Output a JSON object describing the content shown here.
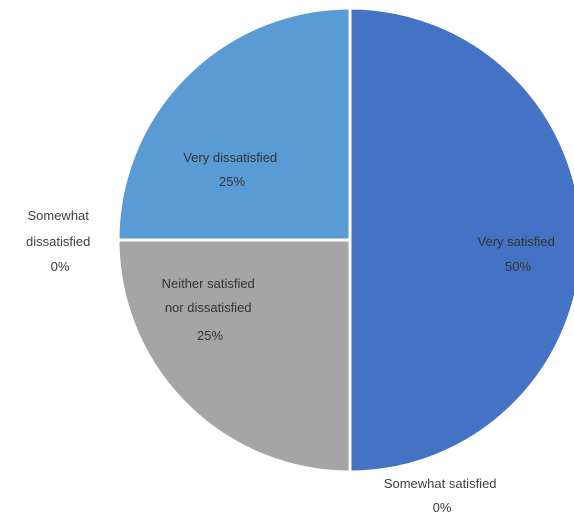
{
  "chart_data": {
    "type": "pie",
    "title": "",
    "start_angle_deg": 0,
    "direction": "clockwise",
    "legend": "none",
    "slices": [
      {
        "name": "Very satisfied",
        "value": 50,
        "label": "50%",
        "color": "#4472C4"
      },
      {
        "name": "Somewhat satisfied",
        "value": 0,
        "label": "0%",
        "color": "#ED7D31"
      },
      {
        "name": "Neither satisfied nor dissatisfied",
        "value": 25,
        "label": "25%",
        "color": "#A5A5A5"
      },
      {
        "name": "Somewhat dissatisfied",
        "value": 0,
        "label": "0%",
        "color": "#FFC000"
      },
      {
        "name": "Very dissatisfied",
        "value": 25,
        "label": "25%",
        "color": "#5B9BD5"
      }
    ]
  }
}
